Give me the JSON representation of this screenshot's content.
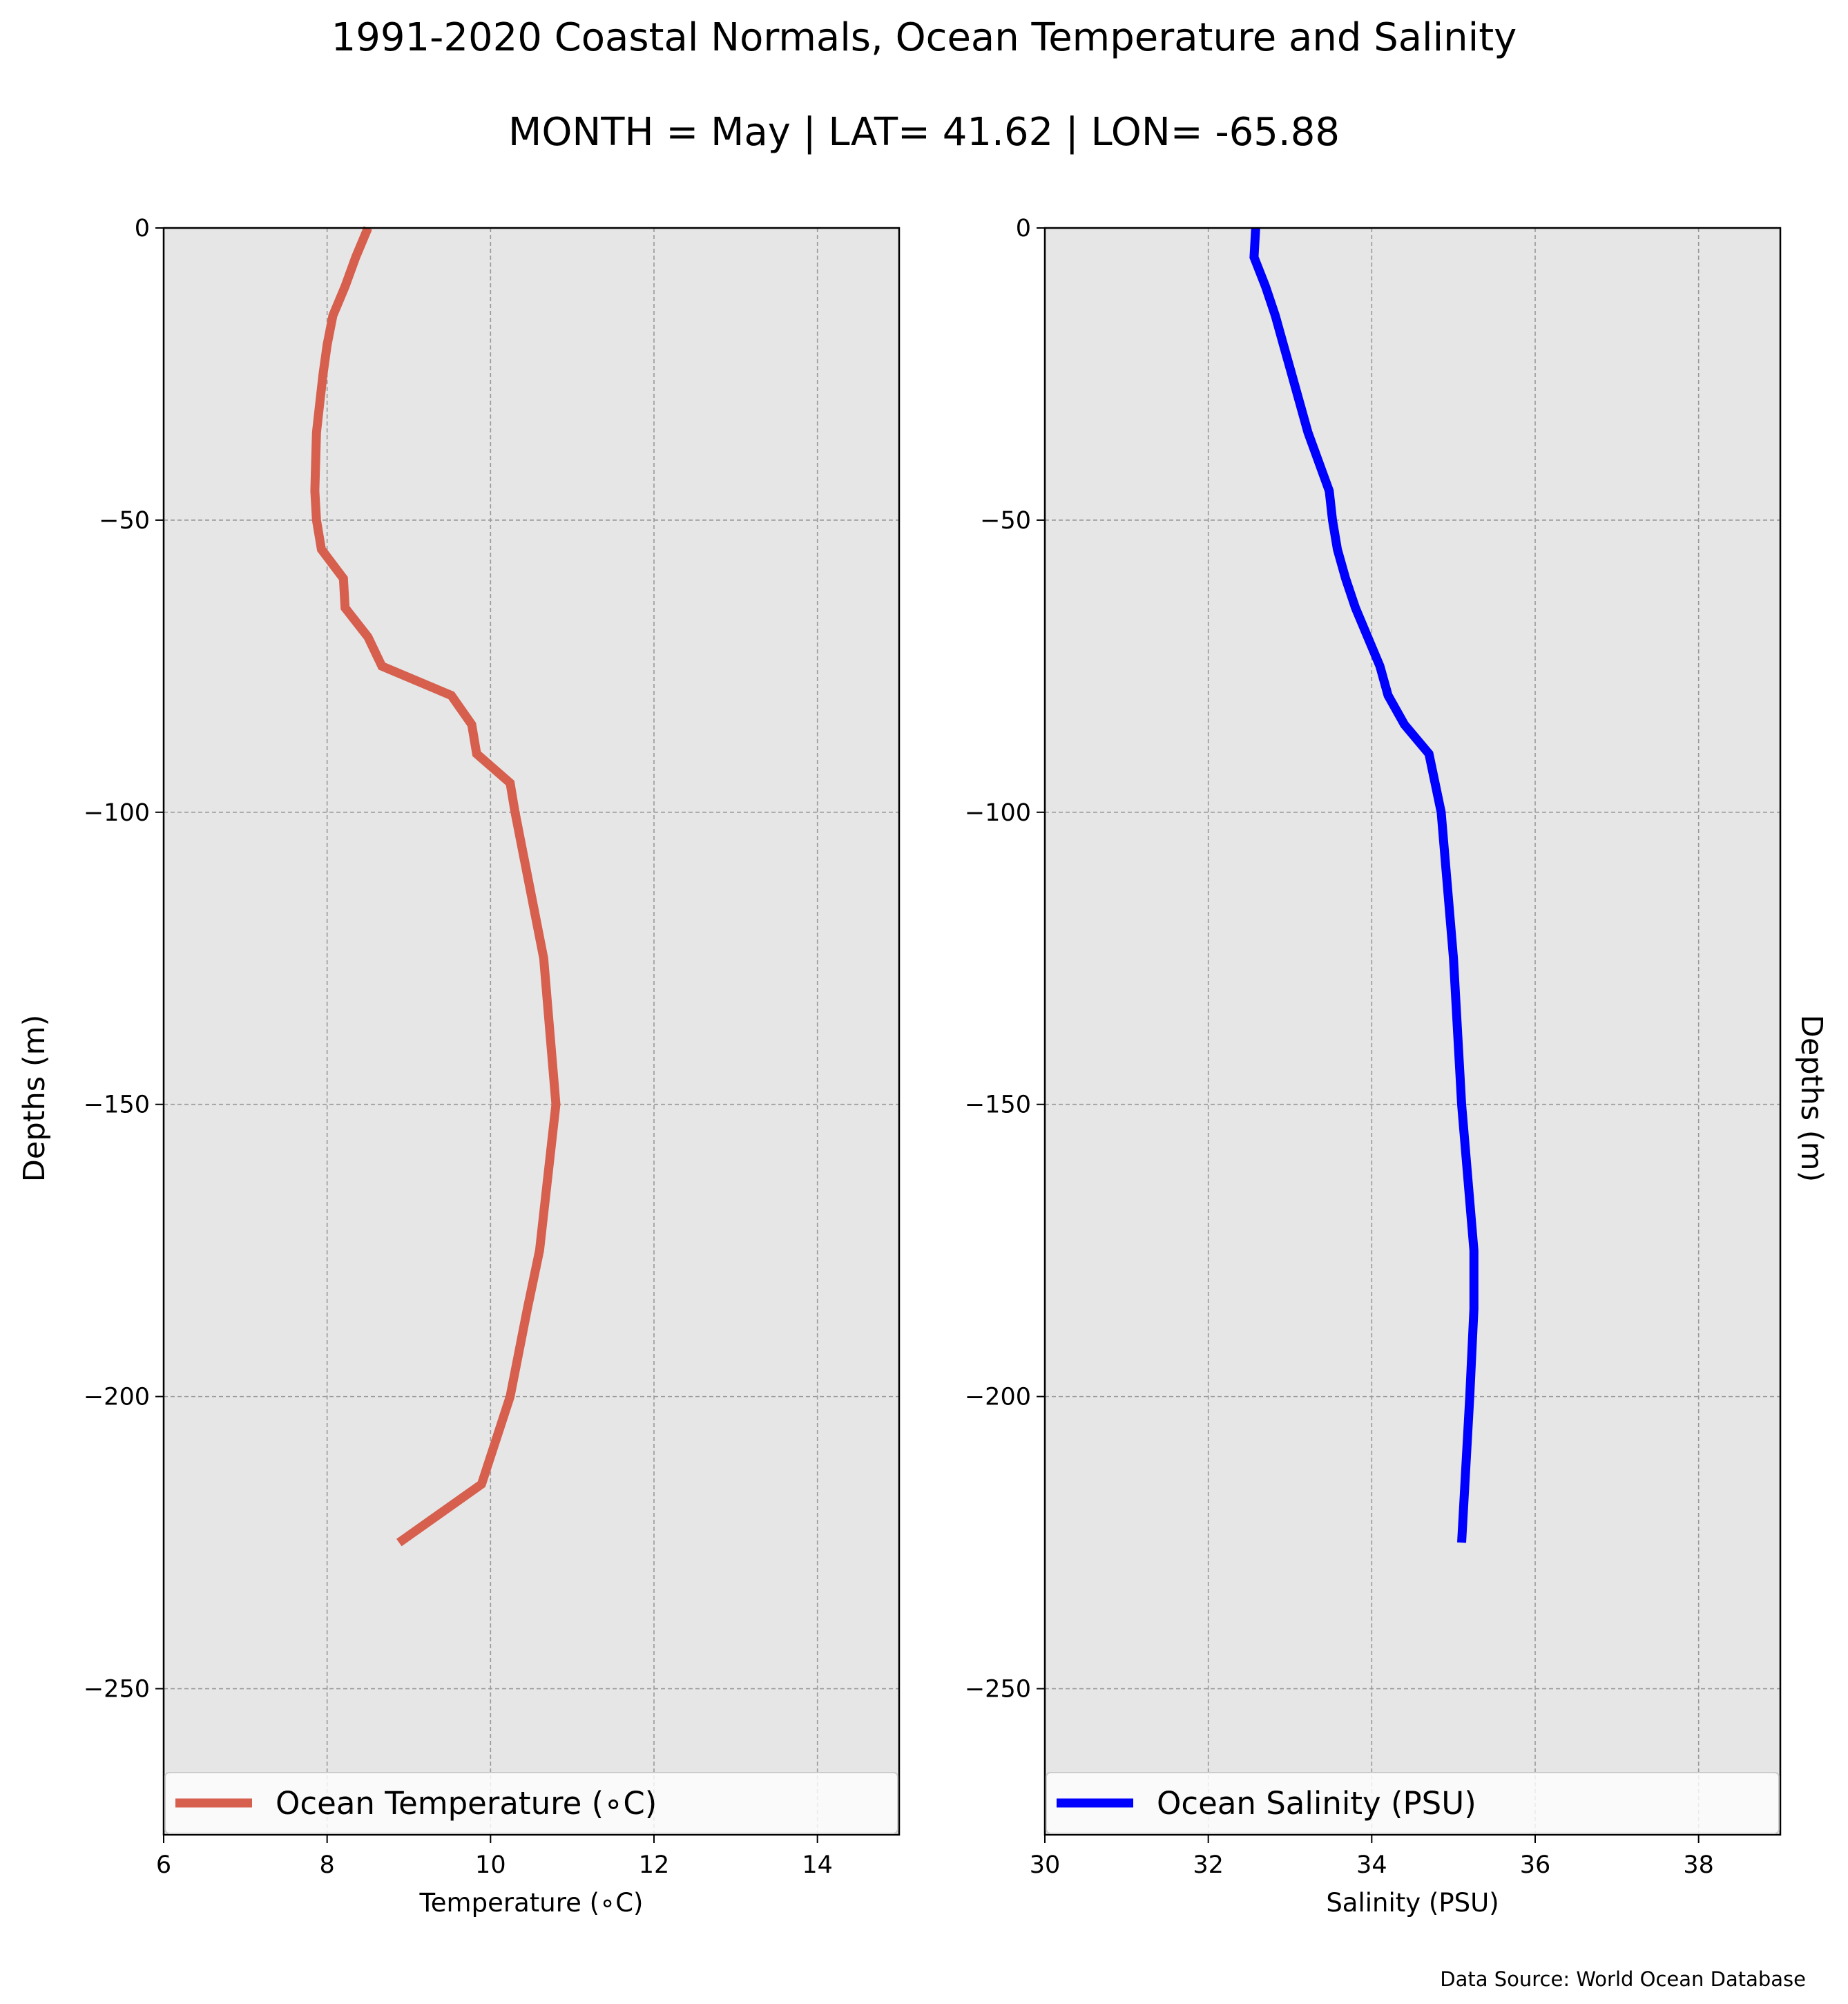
{
  "figure": {
    "title": "1991-2020 Coastal Normals, Ocean Temperature and Salinity",
    "subtitle": "MONTH = May | LAT= 41.62 | LON= -65.88",
    "source_note": "Data Source: World Ocean Database",
    "plot_background": "#e6e6e6",
    "grid_color": "#999999"
  },
  "chart_data": [
    {
      "type": "line",
      "xlabel": "Temperature (∘C)",
      "ylabel": "Depths (m)",
      "xlim": [
        6,
        15
      ],
      "ylim": [
        -275,
        0
      ],
      "xticks": [
        6,
        8,
        10,
        12,
        14
      ],
      "xtick_labels": [
        "6",
        "8",
        "10",
        "12",
        "14"
      ],
      "yticks": [
        0,
        -50,
        -100,
        -150,
        -200,
        -250
      ],
      "ytick_labels": [
        "0",
        "−50",
        "−100",
        "−150",
        "−200",
        "−250"
      ],
      "grid": true,
      "legend_position": "lower center",
      "series": [
        {
          "name": "Ocean Temperature (∘C)",
          "color": "#d65f4e",
          "x": [
            8.5,
            8.35,
            8.22,
            8.07,
            8.0,
            7.95,
            7.91,
            7.87,
            7.86,
            7.85,
            7.87,
            7.93,
            8.2,
            8.22,
            8.5,
            8.67,
            9.52,
            9.77,
            9.83,
            10.24,
            10.3,
            10.65,
            10.8,
            10.6,
            10.45,
            10.24,
            9.89,
            8.88
          ],
          "y": [
            0,
            -5,
            -10,
            -15,
            -20,
            -25,
            -30,
            -35,
            -40,
            -45,
            -50,
            -55,
            -60,
            -65,
            -70,
            -75,
            -80,
            -85,
            -90,
            -95,
            -100,
            -125,
            -150,
            -175,
            -185,
            -200,
            -215,
            -225
          ]
        }
      ]
    },
    {
      "type": "line",
      "xlabel": "Salinity (PSU)",
      "ylabel": "Depths (m)",
      "xlim": [
        30,
        39
      ],
      "ylim": [
        -275,
        0
      ],
      "xticks": [
        30,
        32,
        34,
        36,
        38
      ],
      "xtick_labels": [
        "30",
        "32",
        "34",
        "36",
        "38"
      ],
      "yticks": [
        0,
        -50,
        -100,
        -150,
        -200,
        -250
      ],
      "ytick_labels": [
        "0",
        "−50",
        "−100",
        "−150",
        "−200",
        "−250"
      ],
      "grid": true,
      "legend_position": "lower center",
      "series": [
        {
          "name": "Ocean Salinity (PSU)",
          "color": "#0000ff",
          "x": [
            32.58,
            32.56,
            32.7,
            32.82,
            32.92,
            33.02,
            33.12,
            33.22,
            33.35,
            33.48,
            33.52,
            33.58,
            33.68,
            33.8,
            34.1,
            34.2,
            34.4,
            34.7,
            34.85,
            35.0,
            35.1,
            35.25,
            35.25,
            35.2,
            35.1
          ],
          "y": [
            0,
            -5,
            -10,
            -15,
            -20,
            -25,
            -30,
            -35,
            -40,
            -45,
            -50,
            -55,
            -60,
            -65,
            -75,
            -80,
            -85,
            -90,
            -100,
            -125,
            -150,
            -175,
            -185,
            -200,
            -225
          ]
        }
      ]
    }
  ]
}
